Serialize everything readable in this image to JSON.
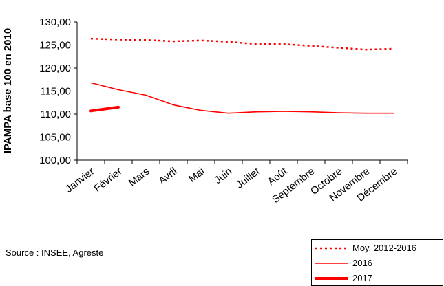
{
  "chart_data": {
    "type": "line",
    "ylabel": "IPAMPA base 100 en 2010",
    "xlabel": "",
    "categories": [
      "Janvier",
      "Février",
      "Mars",
      "Avril",
      "Mai",
      "Juin",
      "Juillet",
      "Août",
      "Septembre",
      "Octobre",
      "Novembre",
      "Décembre"
    ],
    "ylim": [
      100,
      130
    ],
    "yticks": [
      "100,00",
      "105,00",
      "110,00",
      "115,00",
      "120,00",
      "125,00",
      "130,00"
    ],
    "grid": false,
    "legend_position": "bottom-right",
    "series": [
      {
        "name": "Moy. 2012-2016",
        "style": "dotted",
        "color": "#ff0000",
        "values": [
          126.4,
          126.2,
          126.1,
          125.8,
          126.0,
          125.7,
          125.2,
          125.2,
          124.8,
          124.4,
          124.0,
          124.2
        ]
      },
      {
        "name": "2016",
        "style": "solid-thin",
        "color": "#ff0000",
        "values": [
          116.8,
          115.3,
          114.1,
          112.0,
          110.8,
          110.2,
          110.5,
          110.6,
          110.5,
          110.3,
          110.2,
          110.2
        ]
      },
      {
        "name": "2017",
        "style": "solid-thick",
        "color": "#ff0000",
        "values": [
          110.7,
          111.5,
          null,
          null,
          null,
          null,
          null,
          null,
          null,
          null,
          null,
          null
        ]
      }
    ]
  },
  "source": "Source : INSEE, Agreste"
}
